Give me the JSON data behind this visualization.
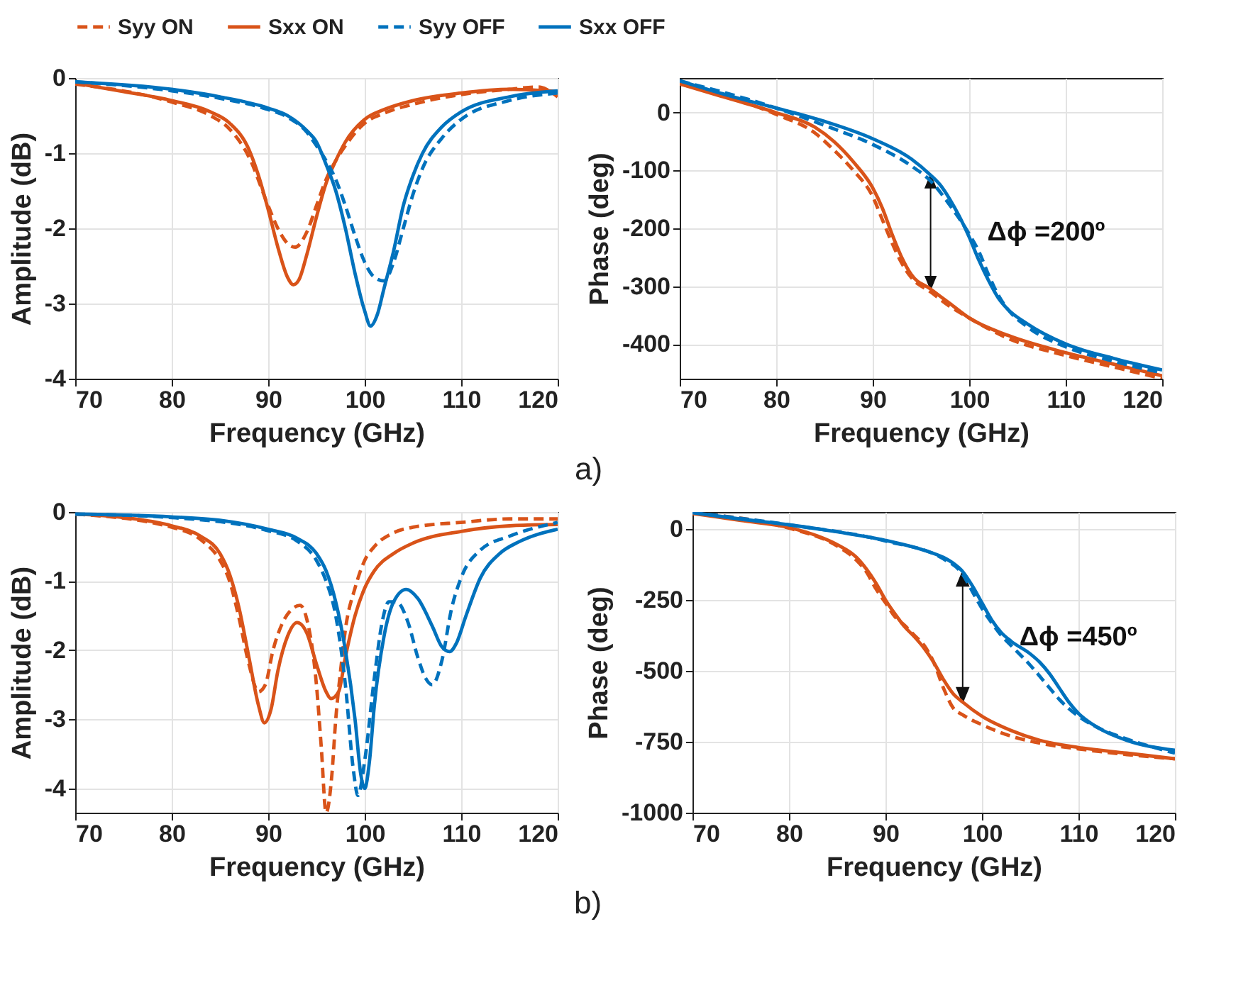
{
  "chart_data": [
    {
      "type": "line",
      "xlabel": "Frequency (GHz)",
      "ylabel": "Amplitude (dB)",
      "xlim": [
        70,
        120
      ],
      "ylim": [
        -4,
        0
      ],
      "xticks": [
        70,
        80,
        90,
        100,
        110,
        120
      ],
      "yticks": [
        -4,
        -3,
        -2,
        -1,
        0
      ],
      "grid": true,
      "legend": "top",
      "series": [
        {
          "name": "Syy ON",
          "color": "#d95319",
          "line_style": "dashed",
          "x": [
            70,
            80,
            84,
            86,
            88,
            90,
            91,
            92,
            92.8,
            94,
            95,
            96,
            97,
            98,
            100,
            102,
            105,
            110,
            115,
            118,
            120
          ],
          "values": [
            -0.08,
            -0.32,
            -0.5,
            -0.68,
            -1.05,
            -1.7,
            -2.0,
            -2.2,
            -2.25,
            -2.05,
            -1.7,
            -1.35,
            -1.1,
            -0.9,
            -0.6,
            -0.47,
            -0.35,
            -0.22,
            -0.15,
            -0.12,
            -0.25
          ]
        },
        {
          "name": "Sxx ON",
          "color": "#d95319",
          "line_style": "solid",
          "x": [
            70,
            75,
            80,
            84,
            86,
            88,
            89,
            90,
            91,
            92,
            92.6,
            93.2,
            94,
            95,
            96,
            97,
            98,
            100,
            102,
            105,
            110,
            115,
            120
          ],
          "values": [
            -0.07,
            -0.18,
            -0.3,
            -0.45,
            -0.6,
            -0.95,
            -1.3,
            -1.75,
            -2.25,
            -2.65,
            -2.75,
            -2.68,
            -2.35,
            -1.85,
            -1.4,
            -1.1,
            -0.85,
            -0.55,
            -0.42,
            -0.3,
            -0.2,
            -0.15,
            -0.18
          ]
        },
        {
          "name": "Syy OFF",
          "color": "#0072bd",
          "line_style": "dashed",
          "x": [
            70,
            80,
            85,
            90,
            92,
            94,
            95,
            96,
            97,
            98,
            99,
            100,
            101,
            102,
            103,
            104,
            105,
            106,
            108,
            110,
            115,
            120
          ],
          "values": [
            -0.05,
            -0.17,
            -0.27,
            -0.42,
            -0.52,
            -0.72,
            -0.9,
            -1.1,
            -1.35,
            -1.7,
            -2.1,
            -2.45,
            -2.65,
            -2.7,
            -2.45,
            -2.0,
            -1.55,
            -1.2,
            -0.8,
            -0.55,
            -0.3,
            -0.2
          ]
        },
        {
          "name": "Sxx OFF",
          "color": "#0072bd",
          "line_style": "solid",
          "x": [
            70,
            80,
            85,
            90,
            92,
            94,
            95,
            96,
            97,
            98,
            99,
            100,
            100.6,
            101.3,
            102,
            103,
            104,
            105,
            106,
            108,
            110,
            115,
            120
          ],
          "values": [
            -0.05,
            -0.15,
            -0.25,
            -0.4,
            -0.5,
            -0.7,
            -0.85,
            -1.15,
            -1.5,
            -2.0,
            -2.6,
            -3.1,
            -3.3,
            -3.15,
            -2.8,
            -2.3,
            -1.7,
            -1.3,
            -1.0,
            -0.65,
            -0.45,
            -0.25,
            -0.17
          ]
        }
      ]
    },
    {
      "type": "line",
      "xlabel": "Frequency (GHz)",
      "ylabel": "Phase (deg)",
      "xlim": [
        70,
        120
      ],
      "ylim": [
        -460,
        60
      ],
      "xticks": [
        70,
        80,
        90,
        100,
        110,
        120
      ],
      "yticks": [
        -400,
        -300,
        -200,
        -100,
        0
      ],
      "grid": true,
      "annotations": [
        {
          "text": "Δϕ =200º",
          "x": 96,
          "y": -108
        },
        "a)"
      ],
      "series": [
        {
          "name": "Syy ON",
          "color": "#d95319",
          "line_style": "dashed",
          "x": [
            70,
            80,
            84,
            86,
            88,
            90,
            91,
            92,
            93,
            94,
            96,
            98,
            100,
            104,
            110,
            115,
            120
          ],
          "values": [
            50,
            -3,
            -35,
            -65,
            -100,
            -145,
            -185,
            -225,
            -260,
            -285,
            -310,
            -335,
            -355,
            -390,
            -420,
            -440,
            -460
          ]
        },
        {
          "name": "Sxx ON",
          "color": "#d95319",
          "line_style": "solid",
          "x": [
            70,
            75,
            80,
            84,
            86,
            88,
            90,
            91,
            92,
            93,
            94,
            96,
            98,
            100,
            104,
            110,
            115,
            120
          ],
          "values": [
            50,
            25,
            0,
            -25,
            -50,
            -85,
            -130,
            -165,
            -210,
            -250,
            -280,
            -305,
            -330,
            -355,
            -385,
            -415,
            -435,
            -455
          ]
        },
        {
          "name": "Syy OFF",
          "color": "#0072bd",
          "line_style": "dashed",
          "x": [
            70,
            80,
            85,
            90,
            94,
            96,
            98,
            100,
            101,
            102,
            103,
            104,
            106,
            110,
            115,
            120
          ],
          "values": [
            55,
            8,
            -22,
            -55,
            -92,
            -118,
            -160,
            -210,
            -240,
            -280,
            -315,
            -340,
            -370,
            -405,
            -430,
            -450
          ]
        },
        {
          "name": "Sxx OFF",
          "color": "#0072bd",
          "line_style": "solid",
          "x": [
            70,
            75,
            80,
            85,
            90,
            94,
            96,
            97,
            98,
            99,
            100,
            101,
            102,
            103,
            104,
            106,
            110,
            115,
            120
          ],
          "values": [
            55,
            30,
            8,
            -15,
            -45,
            -80,
            -108,
            -125,
            -150,
            -180,
            -215,
            -255,
            -290,
            -320,
            -340,
            -365,
            -400,
            -425,
            -445
          ]
        }
      ]
    },
    {
      "type": "line",
      "xlabel": "Frequency (GHz)",
      "ylabel": "Amplitude (dB)",
      "xlim": [
        70,
        120
      ],
      "ylim": [
        -4.35,
        0
      ],
      "xticks": [
        70,
        80,
        90,
        100,
        110,
        120
      ],
      "yticks": [
        -4,
        -3,
        -2,
        -1,
        0
      ],
      "grid": true,
      "series": [
        {
          "name": "Syy ON",
          "color": "#d95319",
          "line_style": "dashed",
          "x": [
            70,
            80,
            83,
            85,
            86,
            87,
            88,
            89,
            89.7,
            90.5,
            91.5,
            92.5,
            93.3,
            94,
            95,
            95.5,
            96,
            96.6,
            97,
            97.5,
            98,
            99,
            100,
            101,
            103,
            105,
            110,
            115,
            120
          ],
          "values": [
            -0.03,
            -0.22,
            -0.4,
            -0.7,
            -1.0,
            -1.55,
            -2.2,
            -2.6,
            -2.5,
            -2.0,
            -1.6,
            -1.4,
            -1.35,
            -1.55,
            -2.5,
            -3.4,
            -4.35,
            -3.8,
            -3.0,
            -2.3,
            -1.7,
            -1.1,
            -0.7,
            -0.5,
            -0.3,
            -0.22,
            -0.15,
            -0.1,
            -0.1
          ]
        },
        {
          "name": "Sxx ON",
          "color": "#d95319",
          "line_style": "solid",
          "x": [
            70,
            75,
            80,
            83,
            85,
            86,
            87,
            88,
            89,
            89.6,
            90.3,
            91,
            92,
            93,
            94,
            95,
            96,
            96.5,
            97.3,
            98,
            99,
            100,
            101,
            103,
            105,
            110,
            115,
            120
          ],
          "values": [
            -0.03,
            -0.08,
            -0.2,
            -0.35,
            -0.6,
            -0.9,
            -1.4,
            -2.1,
            -2.8,
            -3.05,
            -2.85,
            -2.3,
            -1.8,
            -1.6,
            -1.75,
            -2.2,
            -2.6,
            -2.7,
            -2.6,
            -2.1,
            -1.5,
            -1.1,
            -0.85,
            -0.6,
            -0.45,
            -0.28,
            -0.2,
            -0.18
          ]
        },
        {
          "name": "Syy OFF",
          "color": "#0072bd",
          "line_style": "dashed",
          "x": [
            70,
            80,
            90,
            93,
            95,
            96,
            97,
            98,
            98.8,
            99.3,
            100,
            101,
            101.8,
            102.5,
            103.3,
            104.5,
            105.5,
            106.3,
            107,
            108,
            109,
            110,
            112,
            115,
            120
          ],
          "values": [
            -0.03,
            -0.08,
            -0.27,
            -0.42,
            -0.7,
            -1.0,
            -1.5,
            -2.5,
            -3.7,
            -4.1,
            -3.6,
            -2.4,
            -1.6,
            -1.3,
            -1.3,
            -1.6,
            -2.1,
            -2.4,
            -2.5,
            -2.15,
            -1.4,
            -0.95,
            -0.55,
            -0.35,
            -0.15
          ]
        },
        {
          "name": "Sxx OFF",
          "color": "#0072bd",
          "line_style": "solid",
          "x": [
            70,
            80,
            85,
            90,
            93,
            95,
            96,
            97,
            98,
            99,
            99.6,
            100,
            100.5,
            101,
            102,
            103,
            104.3,
            105.5,
            107,
            108,
            108.8,
            109.5,
            110.5,
            112,
            114,
            116,
            120
          ],
          "values": [
            -0.03,
            -0.07,
            -0.12,
            -0.25,
            -0.38,
            -0.6,
            -0.85,
            -1.3,
            -2.0,
            -3.0,
            -3.8,
            -4.0,
            -3.6,
            -2.8,
            -1.8,
            -1.3,
            -1.12,
            -1.25,
            -1.65,
            -1.95,
            -2.02,
            -1.9,
            -1.5,
            -0.95,
            -0.6,
            -0.43,
            -0.25
          ]
        }
      ]
    },
    {
      "type": "line",
      "xlabel": "Frequency (GHz)",
      "ylabel": "Phase (deg)",
      "xlim": [
        70,
        120
      ],
      "ylim": [
        -1000,
        60
      ],
      "xticks": [
        70,
        80,
        90,
        100,
        110,
        120
      ],
      "yticks": [
        -1000,
        -750,
        -500,
        -250,
        0
      ],
      "grid": true,
      "annotations": [
        {
          "text": "Δϕ =450º",
          "x": 98,
          "y": -150
        },
        "b)"
      ],
      "series": [
        {
          "name": "Syy ON",
          "color": "#d95319",
          "line_style": "dashed",
          "x": [
            70,
            80,
            85,
            87,
            88,
            89,
            90,
            91,
            92,
            93,
            94,
            95,
            96,
            97,
            98,
            100,
            103,
            106,
            110,
            115,
            120
          ],
          "values": [
            55,
            3,
            -60,
            -110,
            -150,
            -210,
            -260,
            -310,
            -340,
            -375,
            -410,
            -470,
            -560,
            -630,
            -655,
            -690,
            -730,
            -755,
            -775,
            -795,
            -810
          ]
        },
        {
          "name": "Sxx ON",
          "color": "#d95319",
          "line_style": "solid",
          "x": [
            70,
            75,
            80,
            83,
            85,
            87,
            88,
            89,
            90,
            91,
            92,
            93,
            94,
            95,
            96,
            97,
            98,
            100,
            103,
            106,
            110,
            115,
            120
          ],
          "values": [
            55,
            30,
            5,
            -25,
            -55,
            -100,
            -140,
            -190,
            -250,
            -300,
            -345,
            -380,
            -420,
            -470,
            -530,
            -580,
            -610,
            -660,
            -710,
            -745,
            -770,
            -790,
            -810
          ]
        },
        {
          "name": "Syy OFF",
          "color": "#0072bd",
          "line_style": "dashed",
          "x": [
            70,
            80,
            90,
            96,
            98,
            99,
            100,
            101,
            102,
            103,
            105,
            107,
            108,
            110,
            112,
            115,
            120
          ],
          "values": [
            58,
            15,
            -42,
            -105,
            -160,
            -220,
            -280,
            -330,
            -375,
            -410,
            -480,
            -560,
            -600,
            -660,
            -700,
            -740,
            -790
          ]
        },
        {
          "name": "Sxx OFF",
          "color": "#0072bd",
          "line_style": "solid",
          "x": [
            70,
            75,
            80,
            85,
            90,
            94,
            96,
            97,
            98,
            99,
            100,
            101,
            102,
            103,
            105,
            106,
            107,
            108,
            109,
            110,
            112,
            115,
            120
          ],
          "values": [
            58,
            35,
            15,
            -10,
            -40,
            -75,
            -100,
            -120,
            -150,
            -200,
            -260,
            -320,
            -365,
            -395,
            -440,
            -470,
            -510,
            -560,
            -610,
            -650,
            -700,
            -745,
            -780
          ]
        }
      ]
    }
  ]
}
